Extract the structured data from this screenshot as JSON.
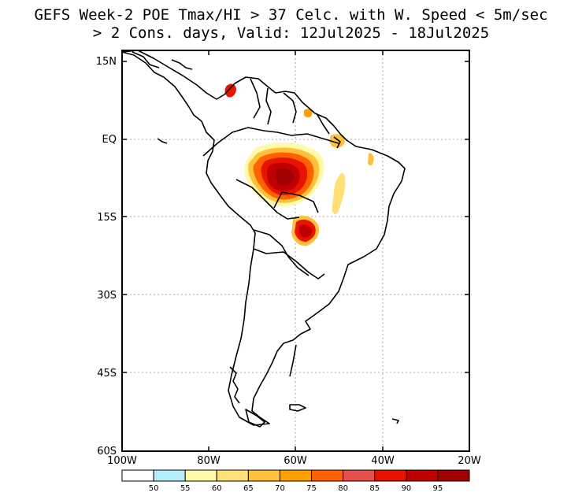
{
  "title": {
    "line1": "GEFS Week-2 POE Tmax/HI > 37 Celc. with W. Speed < 5m/sec",
    "line2": "> 2 Cons. days, Valid: 12Jul2025 - 18Jul2025"
  },
  "lat_labels": [
    "15N",
    "EQ",
    "15S",
    "30S",
    "45S",
    "60S"
  ],
  "lon_labels": [
    "100W",
    "80W",
    "60W",
    "40W",
    "20W"
  ],
  "colorbar": {
    "labels": [
      "50",
      "55",
      "60",
      "65",
      "70",
      "75",
      "80",
      "85",
      "90",
      "95"
    ],
    "colors": [
      "#ffffff",
      "#b4eefa",
      "#fffaaa",
      "#ffe178",
      "#ffc03c",
      "#ffa000",
      "#ff6000",
      "#e85050",
      "#e81400",
      "#c00000",
      "#a00000"
    ]
  }
}
